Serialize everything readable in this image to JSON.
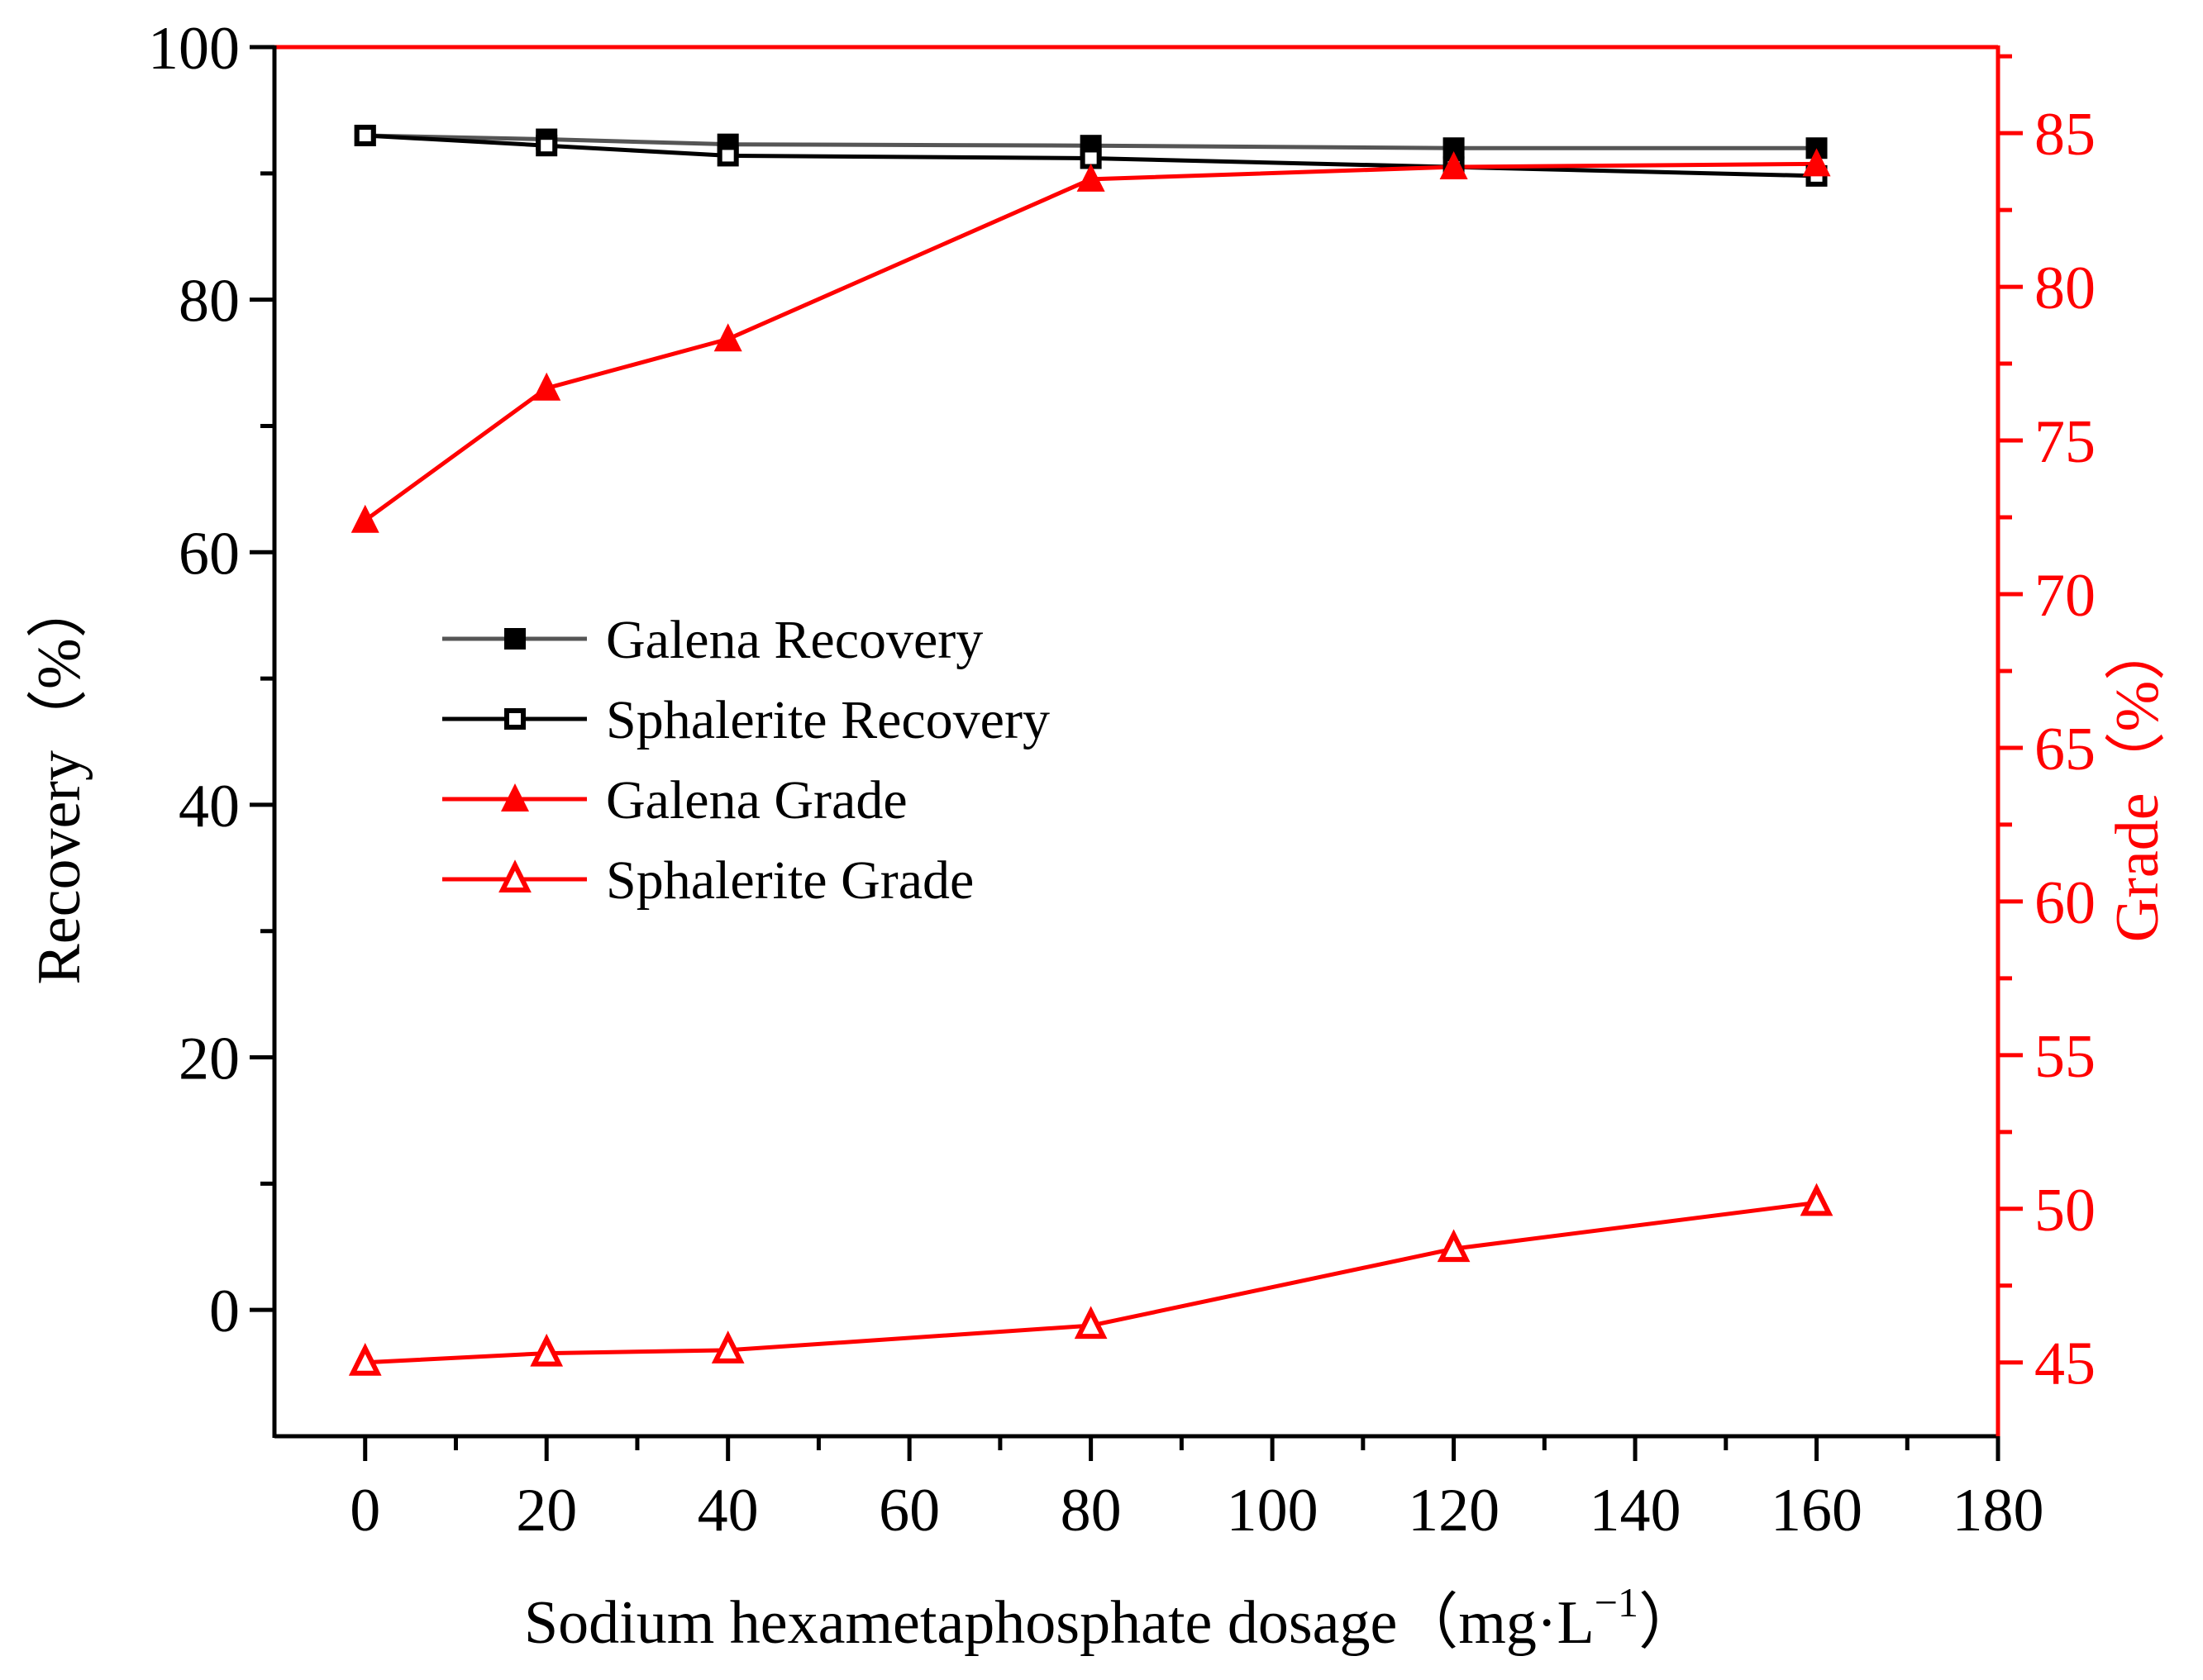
{
  "chart_data": {
    "type": "line",
    "x": [
      0,
      20,
      40,
      80,
      120,
      160
    ],
    "xlabel": "Sodium hexametaphosphate dosage（mg·L",
    "xlabel_sup": "−1",
    "xlabel_close": "）",
    "ylabel_left": "Recovery（%）",
    "ylabel_right": "Grade（%）",
    "xlim": [
      -10,
      180
    ],
    "ylim_left": [
      -10,
      100
    ],
    "ylim_right": [
      42.6,
      87.8
    ],
    "xticks": [
      "0",
      "20",
      "40",
      "60",
      "80",
      "100",
      "120",
      "140",
      "160",
      "180"
    ],
    "yticks_left": [
      "0",
      "20",
      "40",
      "60",
      "80",
      "100"
    ],
    "yticks_right": [
      "45",
      "50",
      "55",
      "60",
      "65",
      "70",
      "75",
      "80",
      "85"
    ],
    "left_axis_color": "#000000",
    "right_axis_color": "#ff0000",
    "legend_position": "center-left",
    "series": [
      {
        "name": "Galena Recovery",
        "axis": "left",
        "color": "#555555",
        "marker": "filled-square",
        "values": [
          93.0,
          92.7,
          92.3,
          92.2,
          92.0,
          92.0
        ]
      },
      {
        "name": "Sphalerite Recovery",
        "axis": "left",
        "color": "#000000",
        "marker": "open-square",
        "values": [
          93.0,
          92.2,
          91.4,
          91.2,
          90.5,
          89.8
        ]
      },
      {
        "name": "Galena Grade",
        "axis": "right",
        "color": "#ff0000",
        "marker": "filled-triangle",
        "values": [
          72.4,
          76.7,
          78.3,
          83.5,
          83.9,
          84.0
        ]
      },
      {
        "name": "Sphalerite Grade",
        "axis": "right",
        "color": "#ff0000",
        "marker": "open-triangle",
        "values": [
          45.0,
          45.3,
          45.4,
          46.2,
          48.7,
          50.2
        ]
      }
    ]
  }
}
